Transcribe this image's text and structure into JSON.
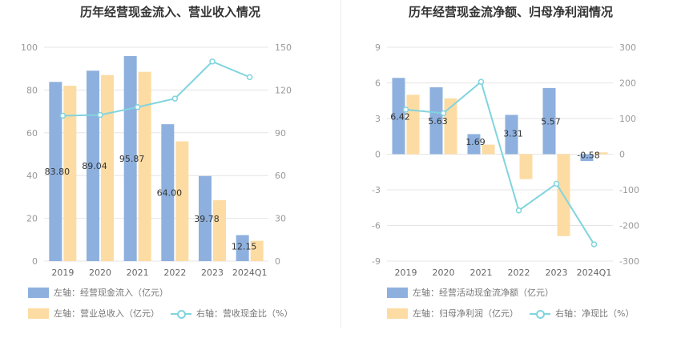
{
  "colors": {
    "bar1": "#8eb0de",
    "bar2": "#fddca3",
    "line": "#80d4de",
    "grid": "#e5e5e5"
  },
  "chart_data": [
    {
      "type": "bar",
      "title": "历年经营现金流入、营业收入情况",
      "categories": [
        "2019",
        "2020",
        "2021",
        "2022",
        "2023",
        "2024Q1"
      ],
      "left_axis": {
        "min": 0,
        "max": 100,
        "ticks": [
          "0",
          "20",
          "40",
          "60",
          "80",
          "100"
        ]
      },
      "right_axis": {
        "min": 0,
        "max": 150,
        "ticks": [
          "0",
          "30",
          "60",
          "90",
          "120",
          "150"
        ]
      },
      "series": [
        {
          "name": "左轴：经营现金流入（亿元）",
          "axis": "left",
          "kind": "bar",
          "values": [
            83.8,
            89.04,
            95.87,
            64.0,
            39.78,
            12.15
          ],
          "labels": [
            "83.80",
            "89.04",
            "95.87",
            "64.00",
            "39.78",
            "12.15"
          ]
        },
        {
          "name": "左轴：营业总收入（亿元）",
          "axis": "left",
          "kind": "bar",
          "values": [
            82,
            87,
            88.5,
            56,
            28.5,
            9.5
          ]
        },
        {
          "name": "右轴：营收现金比（%）",
          "axis": "right",
          "kind": "line",
          "values": [
            102,
            102.5,
            108,
            114,
            140,
            129
          ]
        }
      ]
    },
    {
      "type": "bar",
      "title": "历年经营现金流净额、归母净利润情况",
      "categories": [
        "2019",
        "2020",
        "2021",
        "2022",
        "2023",
        "2024Q1"
      ],
      "left_axis": {
        "min": -9,
        "max": 9,
        "ticks": [
          "-9",
          "-6",
          "-3",
          "0",
          "3",
          "6",
          "9"
        ]
      },
      "right_axis": {
        "min": -300,
        "max": 300,
        "ticks": [
          "-300",
          "-200",
          "-100",
          "0",
          "100",
          "200",
          "300"
        ]
      },
      "series": [
        {
          "name": "左轴：经营活动现金流净额（亿元）",
          "axis": "left",
          "kind": "bar",
          "values": [
            6.42,
            5.63,
            1.69,
            3.31,
            5.57,
            -0.58
          ],
          "labels": [
            "6.42",
            "5.63",
            "1.69",
            "3.31",
            "5.57",
            "-0.58"
          ]
        },
        {
          "name": "左轴：归母净利润（亿元）",
          "axis": "left",
          "kind": "bar",
          "values": [
            5.0,
            4.7,
            0.8,
            -2.1,
            -6.9,
            0.15
          ]
        },
        {
          "name": "右轴：净现比（%）",
          "axis": "right",
          "kind": "line",
          "values": [
            125,
            115,
            203,
            -158,
            -83,
            -253
          ]
        }
      ]
    }
  ]
}
